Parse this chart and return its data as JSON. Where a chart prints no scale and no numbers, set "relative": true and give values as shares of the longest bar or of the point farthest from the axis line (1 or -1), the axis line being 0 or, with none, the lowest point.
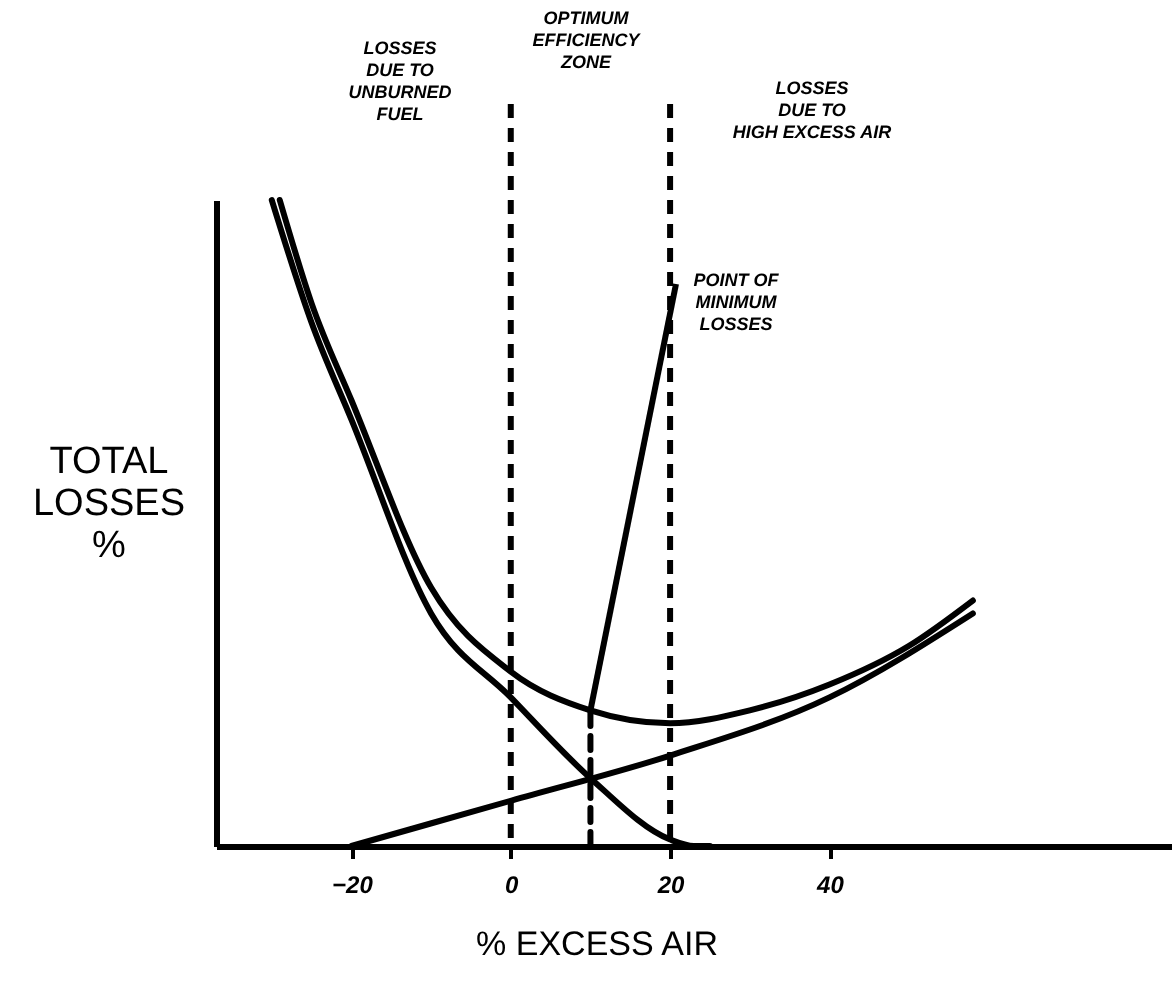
{
  "chart_data": {
    "type": "line",
    "relative": true,
    "xlabel": "% EXCESS AIR",
    "ylabel": "TOTAL LOSSES %",
    "xlim": [
      -37,
      83
    ],
    "xticks": [
      -20,
      0,
      20,
      40
    ],
    "grid": false,
    "tick_labels": "x",
    "marker": "none",
    "series": [
      {
        "color": "#000000",
        "x": [
          -30,
          -25,
          -20,
          -10,
          0,
          10,
          20,
          23,
          25
        ],
        "values": [
          1.0,
          0.81,
          0.66,
          0.36,
          0.23,
          0.105,
          0.01,
          0,
          0
        ]
      },
      {
        "color": "#000000",
        "x": [
          -20,
          0,
          20,
          40,
          58
        ],
        "values": [
          0,
          0.07,
          0.14,
          0.23,
          0.36
        ]
      },
      {
        "color": "#000000",
        "x": [
          -29,
          -25,
          -20,
          -10,
          0,
          10,
          20,
          30,
          40,
          50,
          58
        ],
        "values": [
          1.0,
          0.84,
          0.69,
          0.4,
          0.27,
          0.21,
          0.19,
          0.21,
          0.25,
          0.31,
          0.38
        ]
      },
      {
        "color": "#000000",
        "line_style": "dashed",
        "x": [
          10,
          10
        ],
        "values": [
          0,
          0.21
        ]
      }
    ],
    "ref_lines": [
      {
        "axis": "x",
        "value": 0,
        "line_style": "dashed"
      },
      {
        "axis": "x",
        "value": 20,
        "line_style": "dashed"
      }
    ],
    "annotations": [
      "LOSSES\nDUE TO\nUNBURNED\nFUEL",
      "OPTIMUM\nEFFICIENCY\nZONE",
      "LOSSES\nDUE TO\nHIGH EXCESS AIR",
      {
        "text": "POINT OF\nMINIMUM\nLOSSES",
        "x": 10,
        "y": 0.21
      }
    ]
  }
}
